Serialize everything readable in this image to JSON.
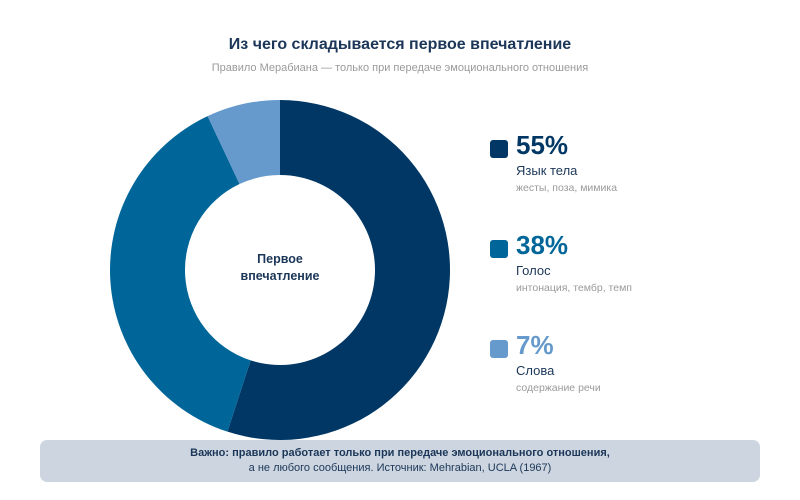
{
  "header": {
    "title": "Из чего складывается первое впечатление",
    "subtitle": "Правило Мерабиана — только при передаче эмоционального отношения"
  },
  "chart_data": {
    "type": "pie",
    "variant": "donut",
    "center_label": [
      "Первое",
      "впечатление"
    ],
    "slices": [
      {
        "label": "Язык тела",
        "value": 55,
        "display": "55%",
        "description": "жесты, поза, мимика",
        "color": "#003764"
      },
      {
        "label": "Голос",
        "value": 38,
        "display": "38%",
        "description": "интонация, тембр, темп",
        "color": "#006699"
      },
      {
        "label": "Слова",
        "value": 7,
        "display": "7%",
        "description": "содержание речи",
        "color": "#6699cc"
      }
    ],
    "legend_position": "right"
  },
  "note": {
    "line1": "Важно: правило работает только при передаче эмоционального отношения,",
    "line2": "а не любого сообщения. Источник: Mehrabian, UCLA (1967)"
  }
}
